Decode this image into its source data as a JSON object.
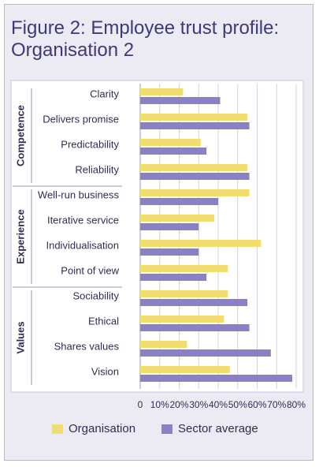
{
  "title": {
    "line1": "Figure 2: Employee trust profile:",
    "line2": "Organisation 2"
  },
  "colors": {
    "organisation": "#f2dd6e",
    "sector_average": "#8b80c4",
    "title": "#3c3a78",
    "frame_bg": "#ecebf3",
    "plot_bg": "#ffffff",
    "grid": "#d4d1e2"
  },
  "chart_data": {
    "type": "bar",
    "orientation": "horizontal",
    "title": "Figure 2: Employee trust profile: Organisation 2",
    "groups": [
      {
        "label": "Competence",
        "categories": [
          "Clarity",
          "Delivers promise",
          "Predictability",
          "Reliability"
        ]
      },
      {
        "label": "Experience",
        "categories": [
          "Well-run business",
          "Iterative service",
          "Individualisation",
          "Point of view"
        ]
      },
      {
        "label": "Values",
        "categories": [
          "Sociability",
          "Ethical",
          "Shares values",
          "Vision"
        ]
      }
    ],
    "categories": [
      "Clarity",
      "Delivers promise",
      "Predictability",
      "Reliability",
      "Well-run business",
      "Iterative service",
      "Individualisation",
      "Point of view",
      "Sociability",
      "Ethical",
      "Shares values",
      "Vision"
    ],
    "series": [
      {
        "name": "Organisation",
        "values": [
          22,
          55,
          31,
          55,
          56,
          38,
          62,
          45,
          45,
          43,
          24,
          46
        ]
      },
      {
        "name": "Sector average",
        "values": [
          41,
          56,
          34,
          56,
          40,
          30,
          30,
          34,
          55,
          56,
          67,
          78
        ]
      }
    ],
    "xticks": [
      "0",
      "10%",
      "20%",
      "30%",
      "40%",
      "50%",
      "60%",
      "70%",
      "80%"
    ],
    "xlim": [
      0,
      80
    ],
    "grid": true,
    "legend_position": "bottom"
  }
}
